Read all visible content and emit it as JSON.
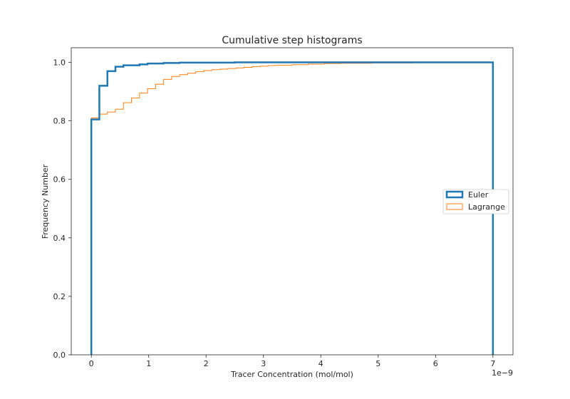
{
  "chart_data": {
    "type": "step",
    "title": "Cumulative step histograms",
    "xlabel": "Tracer Concentration (mol/mol)",
    "ylabel": "Frequency Number",
    "x_offset_label": "1e−9",
    "x_scale": 1e-09,
    "xlim": [
      -0.35,
      7.35
    ],
    "ylim": [
      0.0,
      1.05
    ],
    "xticks": [
      0,
      1,
      2,
      3,
      4,
      5,
      6,
      7
    ],
    "yticks": [
      0.0,
      0.2,
      0.4,
      0.6,
      0.8,
      1.0
    ],
    "ytick_labels": [
      "0.0",
      "0.2",
      "0.4",
      "0.6",
      "0.8",
      "1.0"
    ],
    "grid": false,
    "legend_position": "center-right",
    "series": [
      {
        "name": "Euler",
        "color": "#1f77b4",
        "style": "thick",
        "steps": [
          [
            0.0,
            0.805
          ],
          [
            0.14,
            0.92
          ],
          [
            0.28,
            0.97
          ],
          [
            0.42,
            0.985
          ],
          [
            0.56,
            0.99
          ],
          [
            0.84,
            0.993
          ],
          [
            0.98,
            0.996
          ],
          [
            1.26,
            0.998
          ],
          [
            1.54,
            0.999
          ],
          [
            2.5,
            1.0
          ]
        ],
        "x_end": 7.0
      },
      {
        "name": "Lagrange",
        "color": "#ff7f0e",
        "style": "thin",
        "steps": [
          [
            0.0,
            0.81
          ],
          [
            0.14,
            0.823
          ],
          [
            0.28,
            0.83
          ],
          [
            0.42,
            0.84
          ],
          [
            0.56,
            0.862
          ],
          [
            0.7,
            0.878
          ],
          [
            0.84,
            0.895
          ],
          [
            0.98,
            0.91
          ],
          [
            1.12,
            0.925
          ],
          [
            1.26,
            0.942
          ],
          [
            1.4,
            0.952
          ],
          [
            1.54,
            0.958
          ],
          [
            1.68,
            0.963
          ],
          [
            1.82,
            0.968
          ],
          [
            1.96,
            0.972
          ],
          [
            2.1,
            0.975
          ],
          [
            2.24,
            0.977
          ],
          [
            2.38,
            0.979
          ],
          [
            2.52,
            0.981
          ],
          [
            2.66,
            0.983
          ],
          [
            2.8,
            0.985
          ],
          [
            2.94,
            0.987
          ],
          [
            3.08,
            0.989
          ],
          [
            3.22,
            0.99
          ],
          [
            3.5,
            0.992
          ],
          [
            3.78,
            0.994
          ],
          [
            4.06,
            0.996
          ],
          [
            4.34,
            0.997
          ],
          [
            4.9,
            0.998
          ],
          [
            5.6,
            0.999
          ],
          [
            6.3,
            1.0
          ]
        ],
        "x_end": 7.0
      }
    ]
  }
}
